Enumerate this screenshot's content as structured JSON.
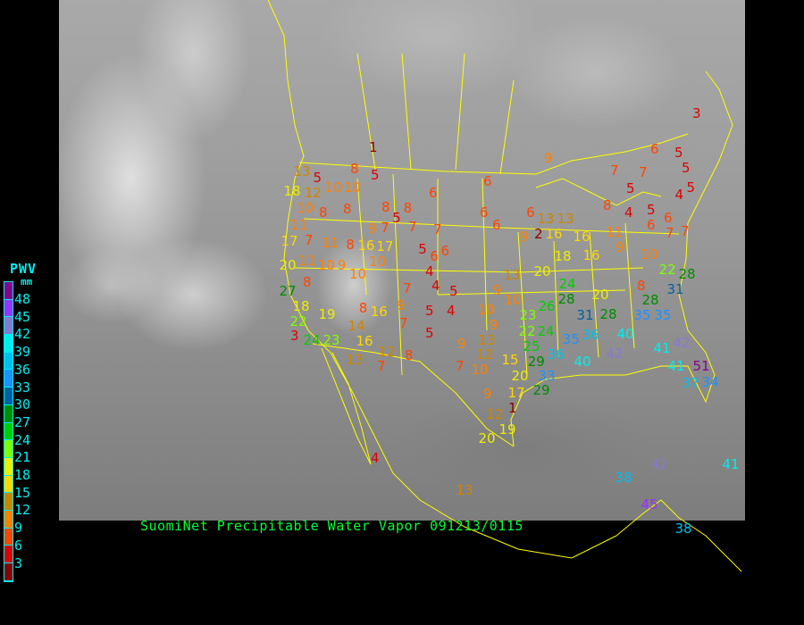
{
  "title": "SuomiNet Precipitable Water Vapor 091213/0115",
  "legend": {
    "title": "PWV",
    "unit": "mm",
    "ticks": [
      "48",
      "45",
      "42",
      "39",
      "36",
      "33",
      "30",
      "27",
      "24",
      "21",
      "18",
      "15",
      "12",
      "9",
      "6",
      "3"
    ],
    "colors": [
      "#8b008b",
      "#9a32ff",
      "#8878d0",
      "#00eeee",
      "#00bfee",
      "#1e90ff",
      "#005f9f",
      "#008b00",
      "#00cd00",
      "#7fff00",
      "#eeee00",
      "#ffd700",
      "#cd8500",
      "#ff8000",
      "#ff4500",
      "#dd0000",
      "#8b0000"
    ]
  },
  "stations": [
    "1",
    "3",
    "9",
    "6",
    "5",
    "5",
    "5",
    "4",
    "7",
    "7",
    "5",
    "5",
    "4",
    "8",
    "6",
    "6",
    "7",
    "7",
    "13",
    "5",
    "8",
    "5",
    "10",
    "18",
    "12",
    "10",
    "6",
    "6",
    "10",
    "8",
    "8",
    "8",
    "8",
    "5",
    "9",
    "7",
    "7",
    "7",
    "6",
    "6",
    "6",
    "13",
    "13",
    "9",
    "2",
    "16",
    "16",
    "11",
    "9",
    "10",
    "11",
    "17",
    "7",
    "11",
    "8",
    "16",
    "17",
    "10",
    "5",
    "6",
    "6",
    "20",
    "11",
    "10",
    "9",
    "10",
    "8",
    "8",
    "4",
    "7",
    "4",
    "5",
    "9",
    "7",
    "5",
    "4",
    "5",
    "13",
    "20",
    "18",
    "16",
    "9",
    "10",
    "10",
    "9",
    "13",
    "9",
    "7",
    "10",
    "12",
    "15",
    "20",
    "17",
    "9",
    "12",
    "1",
    "19",
    "20",
    "24",
    "28",
    "26",
    "23",
    "22",
    "24",
    "31",
    "28",
    "35",
    "35",
    "28",
    "31",
    "22",
    "28",
    "20",
    "8",
    "36",
    "35",
    "36",
    "25",
    "29",
    "33",
    "29",
    "40",
    "40",
    "42",
    "41",
    "42",
    "41",
    "51",
    "37",
    "34",
    "27",
    "18",
    "22",
    "19",
    "16",
    "14",
    "16",
    "12",
    "8",
    "7",
    "13",
    "24",
    "23",
    "3",
    "13",
    "38",
    "42",
    "41",
    "45",
    "38",
    "4"
  ],
  "overlay_colors": {
    "borders": "#ffff00",
    "caption": "#00ff33",
    "legend_text": "#00eeee"
  }
}
